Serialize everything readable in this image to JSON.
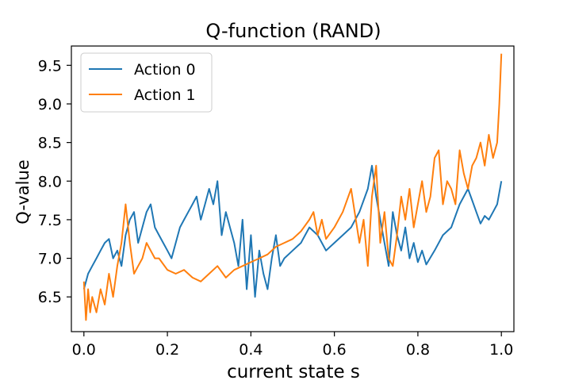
{
  "chart_data": {
    "type": "line",
    "title": "Q-function (RAND)",
    "xlabel": "current state s",
    "ylabel": "Q-value",
    "xlim": [
      -0.03,
      1.03
    ],
    "ylim": [
      6.05,
      9.75
    ],
    "xticks": [
      0.0,
      0.2,
      0.4,
      0.6,
      0.8,
      1.0
    ],
    "xtick_labels": [
      "0.0",
      "0.2",
      "0.4",
      "0.6",
      "0.8",
      "1.0"
    ],
    "yticks": [
      6.5,
      7.0,
      7.5,
      8.0,
      8.5,
      9.0,
      9.5
    ],
    "ytick_labels": [
      "6.5",
      "7.0",
      "7.5",
      "8.0",
      "8.5",
      "9.0",
      "9.5"
    ],
    "grid": false,
    "legend_position": "top-left",
    "series": [
      {
        "name": "Action 0",
        "color": "#1f77b4",
        "x": [
          0.0,
          0.01,
          0.02,
          0.03,
          0.04,
          0.05,
          0.06,
          0.07,
          0.08,
          0.09,
          0.1,
          0.11,
          0.12,
          0.13,
          0.14,
          0.15,
          0.16,
          0.17,
          0.18,
          0.19,
          0.2,
          0.21,
          0.22,
          0.23,
          0.24,
          0.25,
          0.26,
          0.27,
          0.28,
          0.29,
          0.3,
          0.31,
          0.32,
          0.33,
          0.34,
          0.35,
          0.36,
          0.37,
          0.38,
          0.39,
          0.4,
          0.41,
          0.42,
          0.43,
          0.44,
          0.45,
          0.46,
          0.47,
          0.48,
          0.5,
          0.52,
          0.54,
          0.56,
          0.58,
          0.6,
          0.62,
          0.64,
          0.66,
          0.68,
          0.69,
          0.7,
          0.71,
          0.72,
          0.73,
          0.74,
          0.75,
          0.76,
          0.77,
          0.78,
          0.79,
          0.8,
          0.81,
          0.82,
          0.84,
          0.86,
          0.88,
          0.9,
          0.92,
          0.93,
          0.94,
          0.95,
          0.96,
          0.97,
          0.98,
          0.99,
          1.0
        ],
        "values": [
          6.6,
          6.8,
          6.9,
          7.0,
          7.1,
          7.2,
          7.25,
          7.0,
          7.1,
          6.9,
          7.3,
          7.5,
          7.6,
          7.2,
          7.4,
          7.6,
          7.7,
          7.4,
          7.3,
          7.2,
          7.1,
          7.0,
          7.2,
          7.4,
          7.5,
          7.6,
          7.7,
          7.8,
          7.5,
          7.7,
          7.9,
          7.7,
          8.0,
          7.3,
          7.6,
          7.4,
          7.2,
          6.9,
          7.5,
          6.6,
          7.3,
          6.5,
          7.1,
          6.8,
          6.6,
          7.0,
          7.3,
          6.9,
          7.0,
          7.1,
          7.2,
          7.4,
          7.3,
          7.1,
          7.2,
          7.3,
          7.4,
          7.6,
          7.9,
          8.2,
          7.8,
          7.5,
          7.2,
          6.9,
          7.6,
          7.3,
          7.1,
          7.4,
          7.0,
          7.2,
          6.95,
          7.1,
          6.92,
          7.1,
          7.3,
          7.4,
          7.7,
          7.9,
          7.75,
          7.6,
          7.45,
          7.55,
          7.5,
          7.6,
          7.7,
          8.0
        ]
      },
      {
        "name": "Action 1",
        "color": "#ff7f0e",
        "x": [
          0.0,
          0.005,
          0.01,
          0.015,
          0.02,
          0.03,
          0.04,
          0.05,
          0.06,
          0.07,
          0.08,
          0.09,
          0.1,
          0.11,
          0.12,
          0.13,
          0.14,
          0.15,
          0.16,
          0.17,
          0.18,
          0.2,
          0.22,
          0.24,
          0.26,
          0.28,
          0.3,
          0.32,
          0.34,
          0.36,
          0.38,
          0.4,
          0.42,
          0.44,
          0.46,
          0.48,
          0.5,
          0.52,
          0.54,
          0.55,
          0.56,
          0.57,
          0.58,
          0.6,
          0.62,
          0.64,
          0.66,
          0.67,
          0.68,
          0.69,
          0.7,
          0.71,
          0.72,
          0.73,
          0.74,
          0.75,
          0.76,
          0.77,
          0.78,
          0.79,
          0.8,
          0.81,
          0.82,
          0.83,
          0.84,
          0.85,
          0.86,
          0.87,
          0.88,
          0.89,
          0.9,
          0.91,
          0.92,
          0.93,
          0.94,
          0.95,
          0.96,
          0.97,
          0.98,
          0.99,
          0.995,
          1.0
        ],
        "values": [
          6.7,
          6.2,
          6.6,
          6.3,
          6.5,
          6.3,
          6.6,
          6.4,
          6.8,
          6.5,
          6.9,
          7.2,
          7.7,
          7.2,
          6.8,
          6.9,
          7.0,
          7.2,
          7.1,
          7.0,
          7.0,
          6.85,
          6.8,
          6.85,
          6.75,
          6.7,
          6.8,
          6.9,
          6.75,
          6.85,
          6.9,
          6.95,
          7.0,
          7.05,
          7.15,
          7.2,
          7.25,
          7.35,
          7.5,
          7.6,
          7.3,
          7.5,
          7.25,
          7.4,
          7.6,
          7.9,
          7.2,
          7.5,
          6.9,
          7.8,
          8.2,
          7.2,
          7.6,
          7.0,
          6.9,
          7.3,
          7.8,
          7.5,
          7.9,
          7.4,
          7.7,
          8.0,
          7.6,
          7.8,
          8.3,
          8.4,
          7.7,
          8.0,
          7.9,
          7.7,
          8.4,
          8.1,
          7.9,
          8.2,
          8.3,
          8.5,
          8.2,
          8.6,
          8.3,
          8.5,
          9.0,
          9.65
        ]
      }
    ]
  }
}
